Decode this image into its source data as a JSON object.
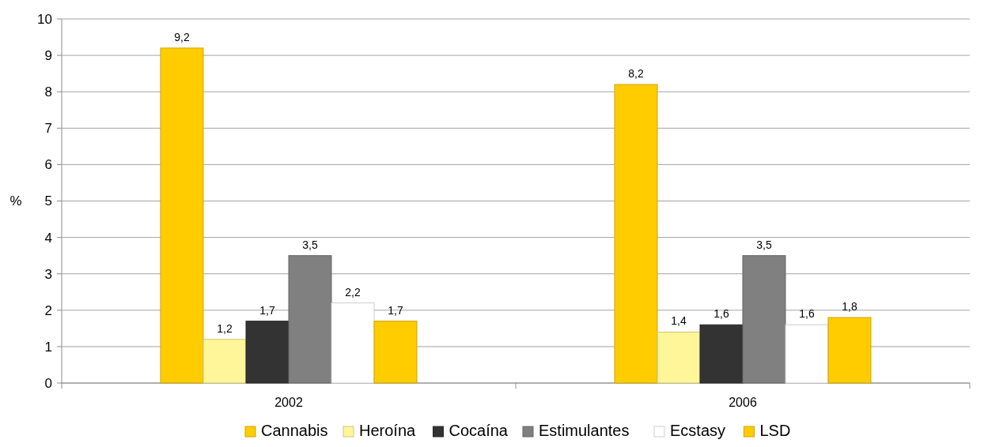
{
  "chart_data": {
    "type": "bar",
    "ylabel": "%",
    "categories": [
      "2002",
      "2006"
    ],
    "series": [
      {
        "name": "Cannabis",
        "color": "#ffcc00",
        "values": [
          9.2,
          8.2
        ],
        "value_labels": [
          "9,2",
          "8,2"
        ]
      },
      {
        "name": "Heroína",
        "color": "#fff599",
        "values": [
          1.2,
          1.4
        ],
        "value_labels": [
          "1,2",
          "1,4"
        ]
      },
      {
        "name": "Cocaína",
        "color": "#333333",
        "values": [
          1.7,
          1.6
        ],
        "value_labels": [
          "1,7",
          "1,6"
        ]
      },
      {
        "name": "Estimulantes",
        "color": "#808080",
        "values": [
          3.5,
          3.5
        ],
        "value_labels": [
          "3,5",
          "3,5"
        ]
      },
      {
        "name": "Ecstasy",
        "color": "#ffffff",
        "values": [
          2.2,
          1.6
        ],
        "value_labels": [
          "2,2",
          "1,6"
        ]
      },
      {
        "name": "LSD",
        "color": "#ffcc00",
        "values": [
          1.7,
          1.8
        ],
        "value_labels": [
          "1,7",
          "1,8"
        ]
      }
    ],
    "ylim": [
      0,
      10
    ],
    "yticks": [
      0,
      1,
      2,
      3,
      4,
      5,
      6,
      7,
      8,
      9,
      10
    ],
    "grid": "y",
    "legend": "bottom"
  }
}
